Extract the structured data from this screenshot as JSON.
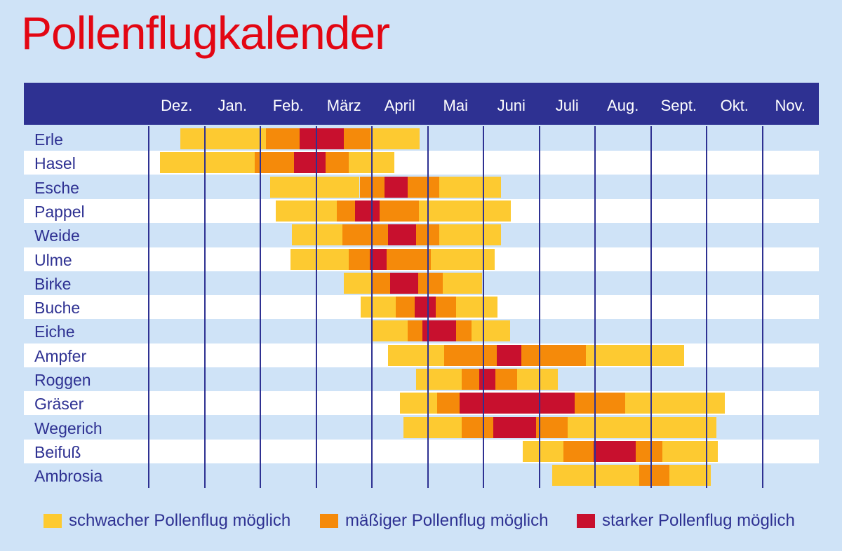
{
  "title": "Pollenflugkalender",
  "colors": {
    "schwach": "#fdca31",
    "maessig": "#f58a0a",
    "stark": "#c8102e",
    "header": "#2e3192",
    "row_alt": "#ffffff",
    "background": "#cfe3f7"
  },
  "legend": [
    {
      "level": "schwach",
      "bold": "schwacher",
      "rest": " Pollenflug möglich"
    },
    {
      "level": "maessig",
      "bold": "mäßiger",
      "rest": " Pollenflug möglich"
    },
    {
      "level": "stark",
      "bold": "starker",
      "rest": " Pollenflug möglich"
    }
  ],
  "chart_data": {
    "type": "gantt",
    "title": "Pollenflugkalender",
    "x_unit": "months (0 = start of Dez., 12 = end of Nov.)",
    "months": [
      "Dez.",
      "Jan.",
      "Feb.",
      "März",
      "April",
      "Mai",
      "Juni",
      "Juli",
      "Aug.",
      "Sept.",
      "Okt.",
      "Nov."
    ],
    "levels": [
      "schwach",
      "maessig",
      "stark"
    ],
    "rows": [
      {
        "name": "Erle",
        "segments": [
          [
            0.56,
            2.1,
            "schwach"
          ],
          [
            2.1,
            2.7,
            "maessig"
          ],
          [
            2.7,
            3.5,
            "stark"
          ],
          [
            3.5,
            3.97,
            "maessig"
          ],
          [
            3.97,
            4.85,
            "schwach"
          ]
        ]
      },
      {
        "name": "Hasel",
        "segments": [
          [
            0.2,
            1.9,
            "schwach"
          ],
          [
            1.9,
            2.6,
            "maessig"
          ],
          [
            2.6,
            3.17,
            "stark"
          ],
          [
            3.17,
            3.58,
            "maessig"
          ],
          [
            3.58,
            4.4,
            "schwach"
          ]
        ]
      },
      {
        "name": "Esche",
        "segments": [
          [
            2.17,
            3.78,
            "schwach"
          ],
          [
            3.78,
            4.23,
            "maessig"
          ],
          [
            4.23,
            4.64,
            "stark"
          ],
          [
            4.64,
            5.21,
            "maessig"
          ],
          [
            5.21,
            6.32,
            "schwach"
          ]
        ]
      },
      {
        "name": "Pappel",
        "segments": [
          [
            2.28,
            3.37,
            "schwach"
          ],
          [
            3.37,
            3.7,
            "maessig"
          ],
          [
            3.7,
            4.14,
            "stark"
          ],
          [
            4.14,
            4.84,
            "maessig"
          ],
          [
            4.84,
            6.49,
            "schwach"
          ]
        ]
      },
      {
        "name": "Weide",
        "segments": [
          [
            2.56,
            3.47,
            "schwach"
          ],
          [
            3.47,
            4.29,
            "maessig"
          ],
          [
            4.29,
            4.79,
            "stark"
          ],
          [
            4.79,
            5.21,
            "maessig"
          ],
          [
            5.21,
            6.32,
            "schwach"
          ]
        ]
      },
      {
        "name": "Ulme",
        "segments": [
          [
            2.54,
            3.59,
            "schwach"
          ],
          [
            3.59,
            3.96,
            "maessig"
          ],
          [
            3.96,
            4.26,
            "stark"
          ],
          [
            4.26,
            5.06,
            "maessig"
          ],
          [
            5.06,
            6.2,
            "schwach"
          ]
        ]
      },
      {
        "name": "Birke",
        "segments": [
          [
            3.5,
            4.0,
            "schwach"
          ],
          [
            4.0,
            4.33,
            "maessig"
          ],
          [
            4.33,
            4.83,
            "stark"
          ],
          [
            4.83,
            5.27,
            "maessig"
          ],
          [
            5.27,
            5.97,
            "schwach"
          ]
        ]
      },
      {
        "name": "Buche",
        "segments": [
          [
            3.8,
            4.43,
            "schwach"
          ],
          [
            4.43,
            4.77,
            "maessig"
          ],
          [
            4.77,
            5.14,
            "stark"
          ],
          [
            5.14,
            5.51,
            "maessig"
          ],
          [
            5.51,
            6.25,
            "schwach"
          ]
        ]
      },
      {
        "name": "Eiche",
        "segments": [
          [
            4.0,
            4.64,
            "schwach"
          ],
          [
            4.64,
            4.9,
            "maessig"
          ],
          [
            4.9,
            5.51,
            "stark"
          ],
          [
            5.51,
            5.79,
            "maessig"
          ],
          [
            5.79,
            6.48,
            "schwach"
          ]
        ]
      },
      {
        "name": "Ampfer",
        "segments": [
          [
            4.29,
            5.3,
            "schwach"
          ],
          [
            5.3,
            6.24,
            "maessig"
          ],
          [
            6.24,
            6.68,
            "stark"
          ],
          [
            6.68,
            7.84,
            "maessig"
          ],
          [
            7.84,
            9.6,
            "schwach"
          ]
        ]
      },
      {
        "name": "Roggen",
        "segments": [
          [
            4.79,
            5.61,
            "schwach"
          ],
          [
            5.61,
            5.93,
            "maessig"
          ],
          [
            5.93,
            6.22,
            "stark"
          ],
          [
            6.22,
            6.6,
            "maessig"
          ],
          [
            6.6,
            7.33,
            "schwach"
          ]
        ]
      },
      {
        "name": "Gräser",
        "segments": [
          [
            4.5,
            5.17,
            "schwach"
          ],
          [
            5.17,
            5.57,
            "maessig"
          ],
          [
            5.57,
            7.63,
            "stark"
          ],
          [
            7.63,
            8.54,
            "maessig"
          ],
          [
            8.54,
            10.33,
            "schwach"
          ]
        ]
      },
      {
        "name": "Wegerich",
        "segments": [
          [
            4.57,
            5.61,
            "schwach"
          ],
          [
            5.61,
            6.17,
            "maessig"
          ],
          [
            6.17,
            6.94,
            "stark"
          ],
          [
            6.94,
            7.51,
            "maessig"
          ],
          [
            7.51,
            10.17,
            "schwach"
          ]
        ]
      },
      {
        "name": "Beifuß",
        "segments": [
          [
            6.7,
            7.44,
            "schwach"
          ],
          [
            7.44,
            7.97,
            "maessig"
          ],
          [
            7.97,
            8.73,
            "stark"
          ],
          [
            8.73,
            9.21,
            "maessig"
          ],
          [
            9.21,
            10.2,
            "schwach"
          ]
        ]
      },
      {
        "name": "Ambrosia",
        "segments": [
          [
            7.23,
            8.79,
            "schwach"
          ],
          [
            8.79,
            9.33,
            "maessig"
          ],
          [
            9.33,
            10.07,
            "schwach"
          ]
        ]
      }
    ]
  }
}
